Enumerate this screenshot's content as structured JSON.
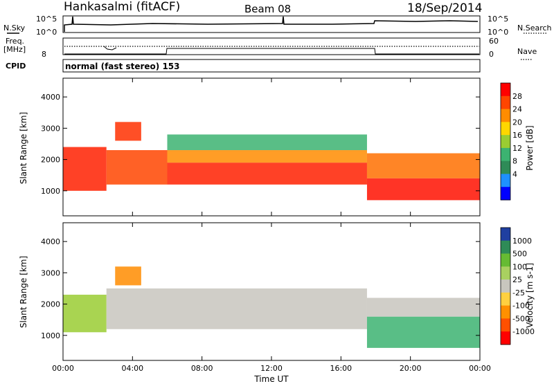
{
  "header": {
    "station": "Hankasalmi (fitACF)",
    "beam": "Beam 08",
    "date": "18/Sep/2014"
  },
  "noise_panel": {
    "left_label": "N.Sky",
    "left_ticks": [
      "10^5",
      "10^0"
    ],
    "right_label": "N.Search",
    "right_ticks": [
      "10^5",
      "10^0"
    ]
  },
  "freq_panel": {
    "left_label_1": "Freq.",
    "left_label_2": "[MHz]",
    "left_ticks": [
      "8"
    ],
    "right_label": "Nave",
    "right_ticks": [
      "60",
      "0"
    ]
  },
  "cpid_panel": {
    "left_label": "CPID",
    "mode_text": "normal (fast stereo) 153"
  },
  "chart_data": [
    {
      "type": "heatmap",
      "name": "power",
      "ylabel": "Slant Range [km]",
      "yticks": [
        "4000",
        "3000",
        "2000",
        "1000"
      ],
      "ylim": [
        200,
        4600
      ],
      "xlim": [
        0,
        24
      ],
      "colorbar_label": "Power [dB]",
      "colorbar_ticks": [
        "28",
        "24",
        "20",
        "16",
        "12",
        "8",
        "4"
      ],
      "colorbar_colors": [
        "#ff0000",
        "#ff4500",
        "#ff8c00",
        "#ffd700",
        "#9acd32",
        "#3cb371",
        "#2e8b57",
        "#1e90ff",
        "#0000ff"
      ],
      "bands": [
        {
          "x": [
            0,
            2.5
          ],
          "y": [
            1000,
            2400
          ],
          "color": "#ff2000"
        },
        {
          "x": [
            2.5,
            6
          ],
          "y": [
            1200,
            2300
          ],
          "color": "#ff4500"
        },
        {
          "x": [
            3,
            4.5
          ],
          "y": [
            2600,
            3200
          ],
          "color": "#ff3000"
        },
        {
          "x": [
            6,
            17.5
          ],
          "y": [
            1200,
            1900
          ],
          "color": "#ff2000"
        },
        {
          "x": [
            6,
            17.5
          ],
          "y": [
            1900,
            2300
          ],
          "color": "#ff8c00"
        },
        {
          "x": [
            6,
            17.5
          ],
          "y": [
            2300,
            2800
          ],
          "color": "#3cb371"
        },
        {
          "x": [
            17.5,
            24
          ],
          "y": [
            700,
            1400
          ],
          "color": "#ff1000"
        },
        {
          "x": [
            17.5,
            24
          ],
          "y": [
            1400,
            2200
          ],
          "color": "#ff7000"
        }
      ]
    },
    {
      "type": "heatmap",
      "name": "velocity",
      "xlabel": "Time UT",
      "xticks": [
        "00:00",
        "04:00",
        "08:00",
        "12:00",
        "16:00",
        "20:00",
        "00:00"
      ],
      "ylabel": "Slant Range [km]",
      "yticks": [
        "4000",
        "3000",
        "2000",
        "1000"
      ],
      "ylim": [
        200,
        4600
      ],
      "xlim": [
        0,
        24
      ],
      "colorbar_label": "Velocity [m s-1]",
      "colorbar_ticks": [
        "1000",
        "500",
        "100",
        "25",
        "-25",
        "-100",
        "-500",
        "-1000"
      ],
      "colorbar_colors": [
        "#1f3fa0",
        "#2e8b57",
        "#66bb33",
        "#a9d060",
        "#c8c6be",
        "#ffd040",
        "#ff9000",
        "#ff5000",
        "#ff0000"
      ],
      "bands": [
        {
          "x": [
            0,
            2.5
          ],
          "y": [
            1100,
            2300
          ],
          "color": "#9acd32"
        },
        {
          "x": [
            3,
            4.5
          ],
          "y": [
            2600,
            3200
          ],
          "color": "#ff8c00"
        },
        {
          "x": [
            2.5,
            17.5
          ],
          "y": [
            1200,
            2500
          ],
          "color": "#c8c6be"
        },
        {
          "x": [
            17.5,
            24
          ],
          "y": [
            600,
            1600
          ],
          "color": "#3cb371"
        },
        {
          "x": [
            17.5,
            24
          ],
          "y": [
            1600,
            2200
          ],
          "color": "#c8c6be"
        }
      ]
    }
  ]
}
